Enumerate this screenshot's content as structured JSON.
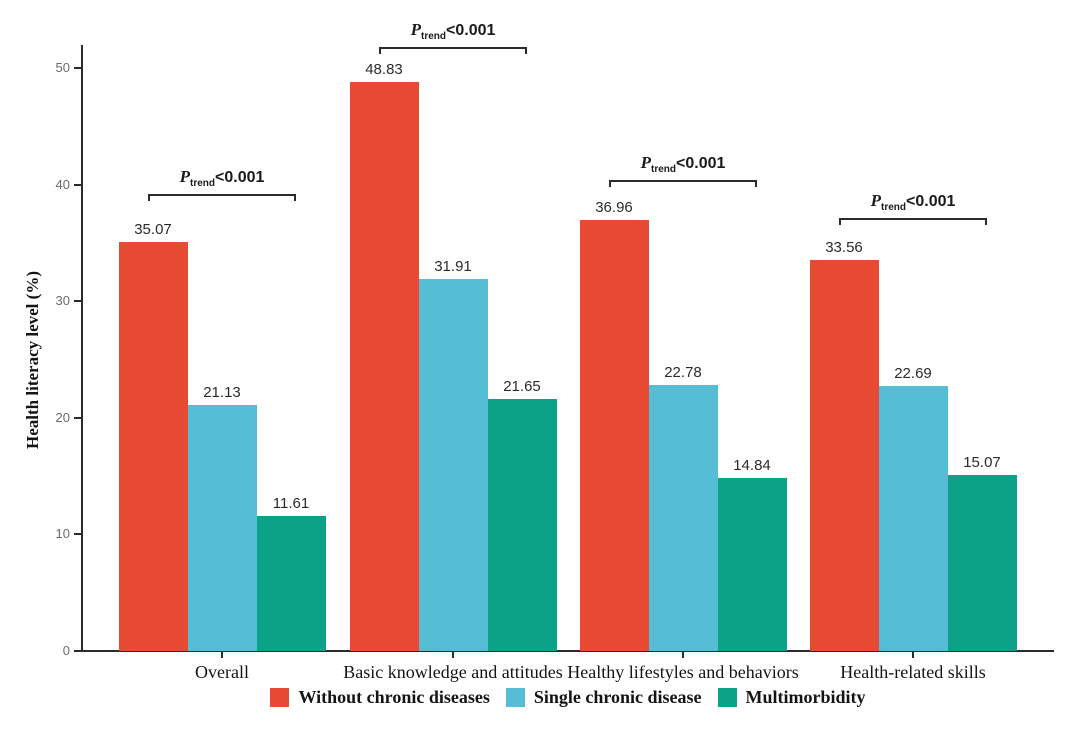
{
  "chart_data": {
    "type": "bar",
    "title": "",
    "ylabel": "Health literacy level (%)",
    "xlabel": "",
    "ylim": [
      0,
      50
    ],
    "yticks": [
      0,
      10,
      20,
      30,
      40,
      50
    ],
    "grid": false,
    "legend_position": "bottom",
    "categories": [
      "Overall",
      "Basic knowledge and attitudes",
      "Healthy lifestyles and behaviors",
      "Health-related skills"
    ],
    "series": [
      {
        "name": "Without chronic diseases",
        "color": "#e84a33",
        "values": [
          35.07,
          48.83,
          36.96,
          33.56
        ]
      },
      {
        "name": "Single chronic disease",
        "color": "#55bdd6",
        "values": [
          21.13,
          31.91,
          22.78,
          22.69
        ]
      },
      {
        "name": "Multimorbidity",
        "color": "#0ba287",
        "values": [
          11.61,
          21.65,
          14.84,
          15.07
        ]
      }
    ],
    "value_labels": [
      "35.07",
      "48.83",
      "36.96",
      "33.56",
      "21.13",
      "31.91",
      "22.78",
      "22.69",
      "11.61",
      "21.65",
      "14.84",
      "15.07"
    ],
    "annotations": [
      {
        "p_symbol": "P",
        "p_subscript": "trend",
        "p_value": "<0.001",
        "bracket_y": 39.2
      },
      {
        "p_symbol": "P",
        "p_subscript": "trend",
        "p_value": "<0.001",
        "bracket_y": 51.8
      },
      {
        "p_symbol": "P",
        "p_subscript": "trend",
        "p_value": "<0.001",
        "bracket_y": 40.4
      },
      {
        "p_symbol": "P",
        "p_subscript": "trend",
        "p_value": "<0.001",
        "bracket_y": 37.1
      }
    ],
    "colors": {
      "axis": "#2b2b2b",
      "tick_label": "#6a6a6a",
      "value_label": "#2b2b2b",
      "text": "#141414",
      "background": "#ffffff"
    }
  }
}
